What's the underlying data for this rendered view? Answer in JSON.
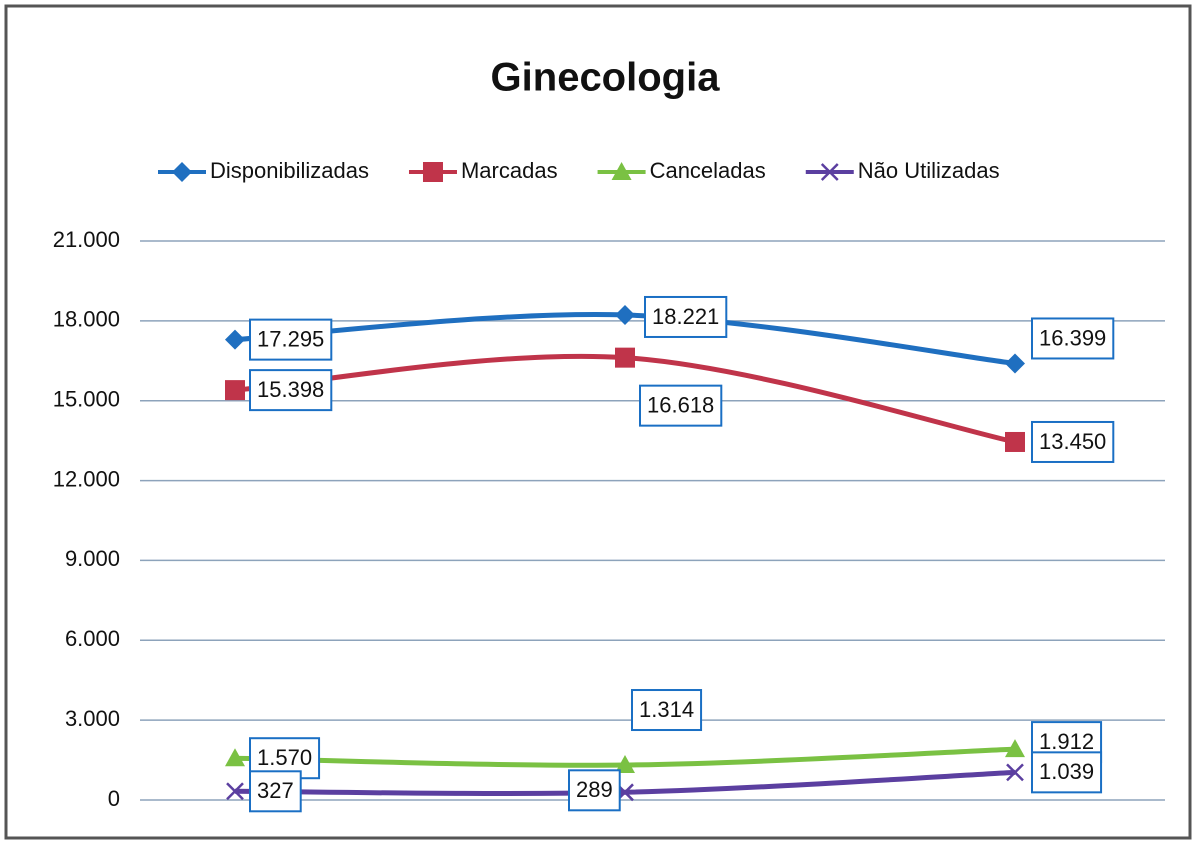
{
  "chart_data": {
    "type": "line",
    "title": "Ginecologia",
    "categories": [
      null,
      null,
      null
    ],
    "series": [
      {
        "name": "Disponibilizadas",
        "color": "#1f6fc0",
        "marker": "diamond",
        "values": [
          17295,
          18221,
          16399
        ],
        "value_labels": [
          "17.295",
          "18.221",
          "16.399"
        ]
      },
      {
        "name": "Marcadas",
        "color": "#c0344a",
        "marker": "square",
        "values": [
          15398,
          16618,
          13450
        ],
        "value_labels": [
          "15.398",
          "16.618",
          "13.450"
        ]
      },
      {
        "name": "Canceladas",
        "color": "#7ac143",
        "marker": "triangle",
        "values": [
          1570,
          1314,
          1912
        ],
        "value_labels": [
          "1.570",
          "1.314",
          "1.912"
        ]
      },
      {
        "name": "Não Utilizadas",
        "color": "#5b3fa0",
        "marker": "x",
        "values": [
          327,
          289,
          1039
        ],
        "value_labels": [
          "327",
          "289",
          "1.039"
        ]
      }
    ],
    "ylim": [
      0,
      21000
    ],
    "yticks": [
      0,
      {
        "value": 3000,
        "label": "3.000"
      },
      {
        "value": 6000,
        "label": "6.000"
      },
      {
        "value": 9000,
        "label": "9.000"
      },
      {
        "value": 12000,
        "label": "12.000"
      },
      {
        "value": 15000,
        "label": "15.000"
      },
      {
        "value": 18000,
        "label": "18.000"
      },
      {
        "value": 21000,
        "label": "21.000"
      }
    ],
    "grid": true,
    "legend": "top"
  }
}
